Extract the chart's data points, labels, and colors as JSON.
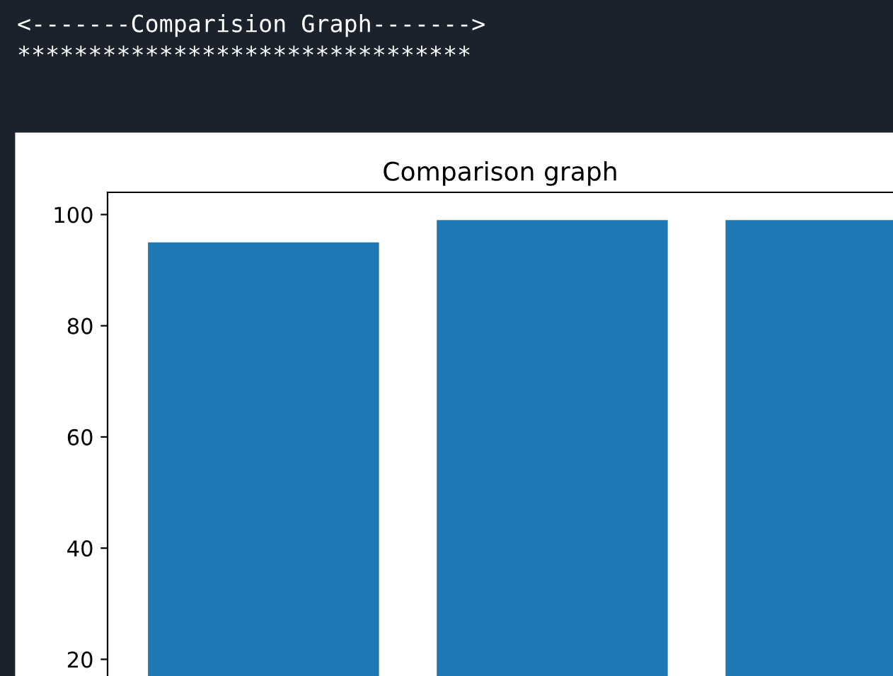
{
  "chart_data": {
    "type": "bar",
    "title": "Comparison graph",
    "annotations": [
      "<-------Comparision Graph------->",
      "********************************"
    ],
    "categories": [
      null,
      null,
      null
    ],
    "values": [
      95,
      99,
      99
    ],
    "color": "#1f77b4",
    "ylim": [
      17,
      104
    ],
    "yticks": [
      20,
      40,
      60,
      80,
      100
    ],
    "grid": false
  }
}
